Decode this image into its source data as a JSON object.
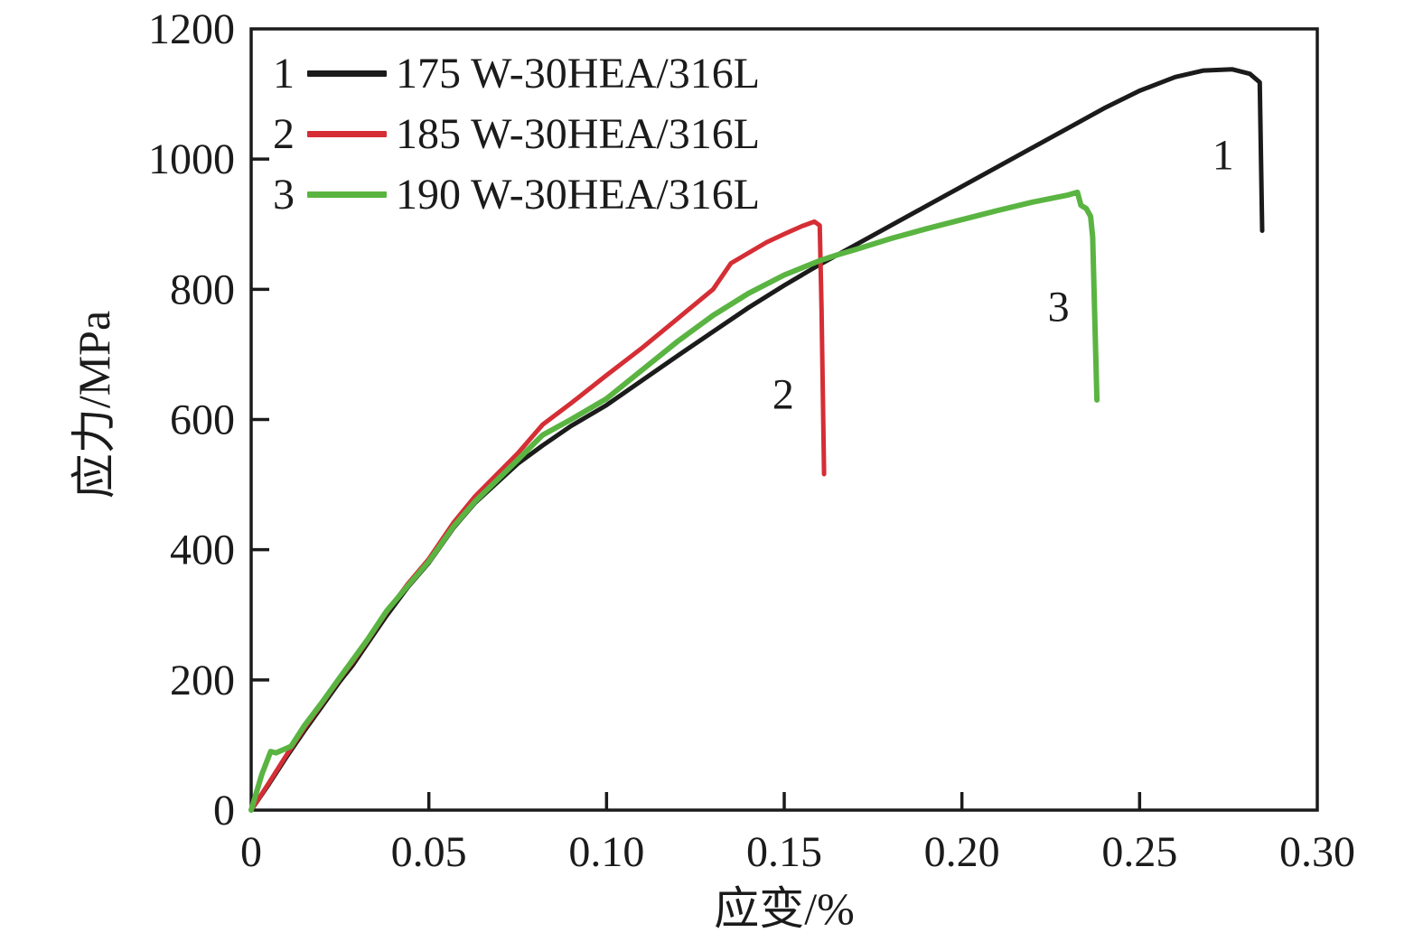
{
  "chart_data": {
    "type": "line",
    "title": "",
    "xlabel": "应变/%",
    "ylabel": "应力/MPa",
    "xlim": [
      0,
      0.3
    ],
    "ylim": [
      0,
      1200
    ],
    "grid": false,
    "background": "#ffffff",
    "axis_color": "#1b1b1b",
    "legend_position": "top-left-inside",
    "xticks": [
      {
        "v": 0,
        "label": "0"
      },
      {
        "v": 0.05,
        "label": "0.05"
      },
      {
        "v": 0.1,
        "label": "0.10"
      },
      {
        "v": 0.15,
        "label": "0.15"
      },
      {
        "v": 0.2,
        "label": "0.20"
      },
      {
        "v": 0.25,
        "label": "0.25"
      },
      {
        "v": 0.3,
        "label": "0.30"
      }
    ],
    "yticks": [
      {
        "v": 0,
        "label": "0"
      },
      {
        "v": 200,
        "label": "200"
      },
      {
        "v": 400,
        "label": "400"
      },
      {
        "v": 600,
        "label": "600"
      },
      {
        "v": 800,
        "label": "800"
      },
      {
        "v": 1000,
        "label": "1000"
      },
      {
        "v": 1200,
        "label": "1200"
      }
    ],
    "legend": [
      {
        "num": "1",
        "label": "175 W-30HEA/316L",
        "color": "#1b1b1b"
      },
      {
        "num": "2",
        "label": "185 W-30HEA/316L",
        "color": "#d52e35"
      },
      {
        "num": "3",
        "label": "190 W-30HEA/316L",
        "color": "#5ab441"
      }
    ],
    "annotations": [
      {
        "text": "1",
        "x": 0.2735,
        "y": 1008
      },
      {
        "text": "2",
        "x": 0.1497,
        "y": 640
      },
      {
        "text": "3",
        "x": 0.2272,
        "y": 775
      }
    ],
    "series": [
      {
        "name": "175 W-30HEA/316L",
        "color": "#1b1b1b",
        "width": 5,
        "points": [
          [
            0,
            0
          ],
          [
            0.005,
            40
          ],
          [
            0.01,
            82
          ],
          [
            0.015,
            122
          ],
          [
            0.02,
            160
          ],
          [
            0.025,
            198
          ],
          [
            0.0285,
            222
          ],
          [
            0.033,
            258
          ],
          [
            0.038,
            298
          ],
          [
            0.044,
            342
          ],
          [
            0.05,
            380
          ],
          [
            0.057,
            434
          ],
          [
            0.063,
            472
          ],
          [
            0.069,
            502
          ],
          [
            0.075,
            532
          ],
          [
            0.082,
            560
          ],
          [
            0.09,
            590
          ],
          [
            0.1,
            622
          ],
          [
            0.11,
            660
          ],
          [
            0.12,
            698
          ],
          [
            0.13,
            735
          ],
          [
            0.14,
            772
          ],
          [
            0.15,
            806
          ],
          [
            0.16,
            838
          ],
          [
            0.17,
            868
          ],
          [
            0.18,
            898
          ],
          [
            0.19,
            928
          ],
          [
            0.2,
            958
          ],
          [
            0.21,
            988
          ],
          [
            0.22,
            1018
          ],
          [
            0.23,
            1048
          ],
          [
            0.24,
            1078
          ],
          [
            0.25,
            1105
          ],
          [
            0.26,
            1126
          ],
          [
            0.268,
            1136
          ],
          [
            0.276,
            1138
          ],
          [
            0.281,
            1131
          ],
          [
            0.2838,
            1118
          ],
          [
            0.2845,
            890
          ]
        ]
      },
      {
        "name": "185 W-30HEA/316L",
        "color": "#d52e35",
        "width": 5,
        "points": [
          [
            0,
            0
          ],
          [
            0.005,
            42
          ],
          [
            0.01,
            85
          ],
          [
            0.015,
            126
          ],
          [
            0.02,
            164
          ],
          [
            0.025,
            202
          ],
          [
            0.0285,
            227
          ],
          [
            0.033,
            262
          ],
          [
            0.038,
            303
          ],
          [
            0.044,
            347
          ],
          [
            0.05,
            386
          ],
          [
            0.057,
            442
          ],
          [
            0.063,
            482
          ],
          [
            0.069,
            515
          ],
          [
            0.075,
            548
          ],
          [
            0.082,
            592
          ],
          [
            0.09,
            625
          ],
          [
            0.1,
            668
          ],
          [
            0.11,
            710
          ],
          [
            0.12,
            755
          ],
          [
            0.13,
            800
          ],
          [
            0.135,
            840
          ],
          [
            0.145,
            872
          ],
          [
            0.15,
            885
          ],
          [
            0.155,
            897
          ],
          [
            0.1585,
            904
          ],
          [
            0.16,
            898
          ],
          [
            0.1605,
            770
          ],
          [
            0.1612,
            516
          ]
        ]
      },
      {
        "name": "190 W-30HEA/316L",
        "color": "#5ab441",
        "width": 6,
        "points": [
          [
            0,
            0
          ],
          [
            0.003,
            55
          ],
          [
            0.0055,
            90
          ],
          [
            0.007,
            88
          ],
          [
            0.0112,
            98
          ],
          [
            0.015,
            130
          ],
          [
            0.02,
            166
          ],
          [
            0.025,
            204
          ],
          [
            0.0285,
            230
          ],
          [
            0.033,
            264
          ],
          [
            0.038,
            305
          ],
          [
            0.044,
            344
          ],
          [
            0.05,
            382
          ],
          [
            0.057,
            436
          ],
          [
            0.063,
            474
          ],
          [
            0.069,
            506
          ],
          [
            0.075,
            538
          ],
          [
            0.082,
            576
          ],
          [
            0.09,
            600
          ],
          [
            0.1,
            632
          ],
          [
            0.11,
            676
          ],
          [
            0.12,
            720
          ],
          [
            0.13,
            760
          ],
          [
            0.14,
            794
          ],
          [
            0.15,
            822
          ],
          [
            0.16,
            844
          ],
          [
            0.165,
            853
          ],
          [
            0.17,
            861
          ],
          [
            0.18,
            878
          ],
          [
            0.19,
            893
          ],
          [
            0.2,
            907
          ],
          [
            0.21,
            921
          ],
          [
            0.22,
            934
          ],
          [
            0.23,
            945
          ],
          [
            0.2325,
            949
          ],
          [
            0.2335,
            929
          ],
          [
            0.235,
            924
          ],
          [
            0.2362,
            912
          ],
          [
            0.2368,
            880
          ],
          [
            0.2375,
            730
          ],
          [
            0.238,
            630
          ]
        ]
      }
    ]
  }
}
